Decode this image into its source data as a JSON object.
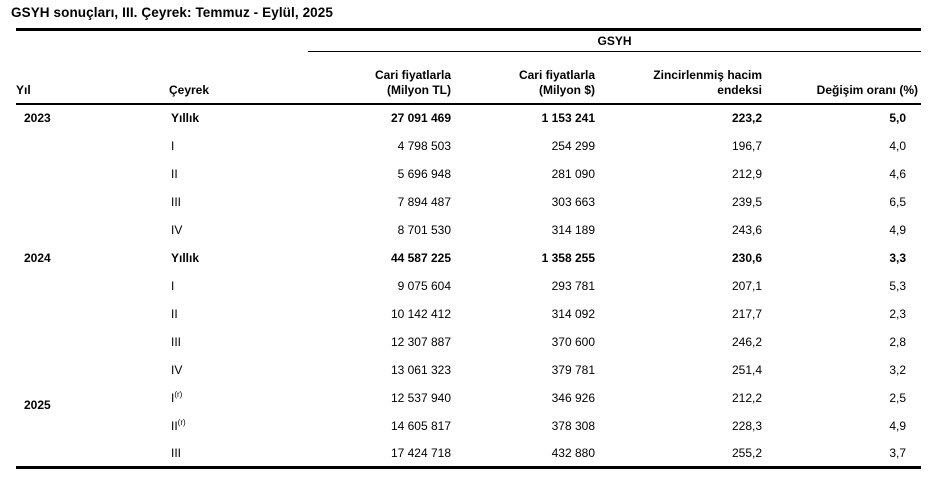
{
  "title": "GSYH sonuçları, III. Çeyrek: Temmuz - Eylül, 2025",
  "colors": {
    "text": "#000000",
    "lines": "#000000",
    "background": "#ffffff"
  },
  "table": {
    "group_header": "GSYH",
    "headers": {
      "yil": "Yıl",
      "ceyrek": "Çeyrek",
      "cari_tl_line1": "Cari fiyatlarla",
      "cari_tl_line2": "(Milyon TL)",
      "cari_usd_line1": "Cari fiyatlarla",
      "cari_usd_line2": "(Milyon $)",
      "endeks_line1": "Zincirlenmiş hacim",
      "endeks_line2": "endeksi",
      "degisim": "Değişim oranı (%)"
    },
    "rows": [
      {
        "year": "2023",
        "year_offset": false,
        "quarter": "Yıllık",
        "sup": "",
        "tl": "27 091 469",
        "usd": "1 153 241",
        "index": "223,2",
        "change": "5,0",
        "bold": true
      },
      {
        "year": "",
        "year_offset": false,
        "quarter": "I",
        "sup": "",
        "tl": "4 798 503",
        "usd": "254 299",
        "index": "196,7",
        "change": "4,0",
        "bold": false
      },
      {
        "year": "",
        "year_offset": false,
        "quarter": "II",
        "sup": "",
        "tl": "5 696 948",
        "usd": "281 090",
        "index": "212,9",
        "change": "4,6",
        "bold": false
      },
      {
        "year": "",
        "year_offset": false,
        "quarter": "III",
        "sup": "",
        "tl": "7 894 487",
        "usd": "303 663",
        "index": "239,5",
        "change": "6,5",
        "bold": false
      },
      {
        "year": "",
        "year_offset": false,
        "quarter": "IV",
        "sup": "",
        "tl": "8 701 530",
        "usd": "314 189",
        "index": "243,6",
        "change": "4,9",
        "bold": false
      },
      {
        "year": "2024",
        "year_offset": false,
        "quarter": "Yıllık",
        "sup": "",
        "tl": "44 587 225",
        "usd": "1 358 255",
        "index": "230,6",
        "change": "3,3",
        "bold": true
      },
      {
        "year": "",
        "year_offset": false,
        "quarter": "I",
        "sup": "",
        "tl": "9 075 604",
        "usd": "293 781",
        "index": "207,1",
        "change": "5,3",
        "bold": false
      },
      {
        "year": "",
        "year_offset": false,
        "quarter": "II",
        "sup": "",
        "tl": "10 142 412",
        "usd": "314 092",
        "index": "217,7",
        "change": "2,3",
        "bold": false
      },
      {
        "year": "",
        "year_offset": false,
        "quarter": "III",
        "sup": "",
        "tl": "12 307 887",
        "usd": "370 600",
        "index": "246,2",
        "change": "2,8",
        "bold": false
      },
      {
        "year": "",
        "year_offset": false,
        "quarter": "IV",
        "sup": "",
        "tl": "13 061 323",
        "usd": "379 781",
        "index": "251,4",
        "change": "3,2",
        "bold": false
      },
      {
        "year": "2025",
        "year_offset": true,
        "quarter": "I",
        "sup": "(r)",
        "tl": "12 537 940",
        "usd": "346 926",
        "index": "212,2",
        "change": "2,5",
        "bold": false
      },
      {
        "year": "",
        "year_offset": false,
        "quarter": "II",
        "sup": "(r)",
        "tl": "14 605 817",
        "usd": "378 308",
        "index": "228,3",
        "change": "4,9",
        "bold": false
      },
      {
        "year": "",
        "year_offset": false,
        "quarter": "III",
        "sup": "",
        "tl": "17 424 718",
        "usd": "432 880",
        "index": "255,2",
        "change": "3,7",
        "bold": false
      }
    ]
  }
}
